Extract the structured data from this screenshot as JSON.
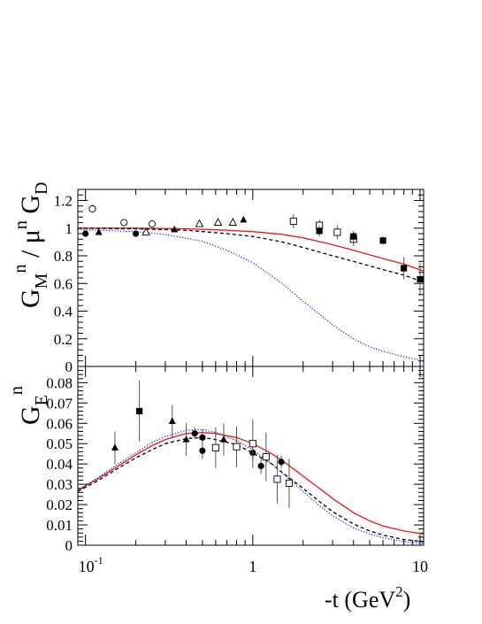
{
  "chart_data": [
    {
      "type": "scatter",
      "panel": "top",
      "ylabel": {
        "main": "G",
        "sub": "M",
        "sup1": "n",
        "mid": " / μ",
        "sup2": "n",
        "tail": " G",
        "sub2": "D"
      },
      "xscale": "log",
      "xlim": [
        0.09,
        10.5
      ],
      "ylim": [
        0,
        1.28
      ],
      "yticks": [
        "0",
        "0.2",
        "0.4",
        "0.6",
        "0.8",
        "1",
        "1.2"
      ],
      "ytick_values": [
        0,
        0.2,
        0.4,
        0.6,
        0.8,
        1.0,
        1.2
      ],
      "curves": [
        {
          "style": "solid",
          "color": "#e8171b",
          "x": [
            0.09,
            0.2,
            0.4,
            0.7,
            1.0,
            1.5,
            2.0,
            3.0,
            4.0,
            6.0,
            8.0,
            10.5
          ],
          "y": [
            1.0,
            1.0,
            0.995,
            0.985,
            0.975,
            0.955,
            0.93,
            0.88,
            0.84,
            0.78,
            0.74,
            0.69
          ]
        },
        {
          "style": "dashed",
          "color": "#000000",
          "x": [
            0.09,
            0.2,
            0.4,
            0.7,
            1.0,
            1.5,
            2.0,
            3.0,
            4.0,
            6.0,
            8.0,
            10.5
          ],
          "y": [
            1.0,
            0.995,
            0.985,
            0.96,
            0.94,
            0.9,
            0.86,
            0.8,
            0.76,
            0.7,
            0.66,
            0.61
          ]
        },
        {
          "style": "dotted",
          "color": "#1e2ad8",
          "x": [
            0.09,
            0.2,
            0.3,
            0.5,
            0.7,
            1.0,
            1.5,
            2.0,
            2.5,
            3.0,
            4.0,
            5.0,
            6.0,
            8.0,
            10.5
          ],
          "y": [
            0.99,
            0.975,
            0.955,
            0.905,
            0.84,
            0.75,
            0.6,
            0.47,
            0.38,
            0.3,
            0.2,
            0.14,
            0.11,
            0.07,
            0.04
          ]
        }
      ],
      "points": [
        {
          "marker": "open-circle",
          "x": 0.11,
          "y": 1.14,
          "err": 0.03
        },
        {
          "marker": "open-circle",
          "x": 0.17,
          "y": 1.04,
          "err": 0.02
        },
        {
          "marker": "open-circle",
          "x": 0.25,
          "y": 1.03,
          "err": 0.02
        },
        {
          "marker": "filled-circle",
          "x": 0.1,
          "y": 0.96,
          "err": 0.0
        },
        {
          "marker": "filled-circle",
          "x": 0.2,
          "y": 0.96,
          "err": 0.0
        },
        {
          "marker": "filled-triangle",
          "x": 0.12,
          "y": 0.97,
          "err": 0.0
        },
        {
          "marker": "filled-triangle",
          "x": 0.34,
          "y": 0.99,
          "err": 0.0
        },
        {
          "marker": "filled-triangle",
          "x": 0.88,
          "y": 1.06,
          "err": 0.0
        },
        {
          "marker": "open-triangle",
          "x": 0.23,
          "y": 0.97,
          "err": 0.0
        },
        {
          "marker": "open-triangle",
          "x": 0.48,
          "y": 1.03,
          "err": 0.0
        },
        {
          "marker": "open-triangle",
          "x": 0.62,
          "y": 1.04,
          "err": 0.0
        },
        {
          "marker": "open-triangle",
          "x": 0.76,
          "y": 1.04,
          "err": 0.0
        },
        {
          "marker": "open-square",
          "x": 1.75,
          "y": 1.05,
          "err": 0.05
        },
        {
          "marker": "open-square",
          "x": 2.5,
          "y": 1.02,
          "err": 0.04
        },
        {
          "marker": "open-square",
          "x": 3.2,
          "y": 0.97,
          "err": 0.05
        },
        {
          "marker": "open-square",
          "x": 4.0,
          "y": 0.92,
          "err": 0.05
        },
        {
          "marker": "filled-square",
          "x": 2.5,
          "y": 0.98,
          "err": 0.04
        },
        {
          "marker": "filled-square",
          "x": 4.0,
          "y": 0.94,
          "err": 0.04
        },
        {
          "marker": "filled-square",
          "x": 6.0,
          "y": 0.91,
          "err": 0.03
        },
        {
          "marker": "filled-square",
          "x": 8.0,
          "y": 0.71,
          "err": 0.08
        },
        {
          "marker": "filled-square",
          "x": 10.0,
          "y": 0.63,
          "err": 0.12
        }
      ]
    },
    {
      "type": "scatter",
      "panel": "bottom",
      "ylabel": {
        "main": "G",
        "sub": "E",
        "sup1": "n"
      },
      "xlabel": {
        "main": "-t (GeV",
        "sup": "2",
        "tail": ")"
      },
      "xscale": "log",
      "xlim": [
        0.09,
        10.5
      ],
      "ylim": [
        0,
        0.088
      ],
      "xtick_labels": [
        {
          "value": 0.1,
          "base": "10",
          "exp": "-1"
        },
        {
          "value": 1,
          "base": "1",
          "exp": ""
        },
        {
          "value": 10,
          "base": "10",
          "exp": ""
        }
      ],
      "yticks": [
        "0",
        "0.01",
        "0.02",
        "0.03",
        "0.04",
        "0.05",
        "0.06",
        "0.07",
        "0.08"
      ],
      "ytick_values": [
        0,
        0.01,
        0.02,
        0.03,
        0.04,
        0.05,
        0.06,
        0.07,
        0.08
      ],
      "curves": [
        {
          "style": "solid",
          "color": "#e8171b",
          "x": [
            0.09,
            0.12,
            0.15,
            0.2,
            0.25,
            0.3,
            0.4,
            0.5,
            0.6,
            0.8,
            1.0,
            1.3,
            1.6,
            2.0,
            2.5,
            3.0,
            4.0,
            5.0,
            6.0,
            8.0,
            10.5
          ],
          "y": [
            0.027,
            0.033,
            0.038,
            0.0445,
            0.049,
            0.052,
            0.055,
            0.0555,
            0.055,
            0.053,
            0.05,
            0.045,
            0.04,
            0.034,
            0.028,
            0.023,
            0.016,
            0.012,
            0.0095,
            0.007,
            0.0055
          ]
        },
        {
          "style": "dashed",
          "color": "#000000",
          "x": [
            0.09,
            0.12,
            0.15,
            0.2,
            0.25,
            0.3,
            0.4,
            0.5,
            0.6,
            0.8,
            1.0,
            1.3,
            1.6,
            2.0,
            2.5,
            3.0,
            4.0,
            5.0,
            6.0,
            8.0,
            10.5
          ],
          "y": [
            0.0265,
            0.032,
            0.037,
            0.043,
            0.047,
            0.05,
            0.0525,
            0.053,
            0.052,
            0.0495,
            0.0455,
            0.04,
            0.034,
            0.028,
            0.0215,
            0.0165,
            0.0105,
            0.007,
            0.005,
            0.0028,
            0.0018
          ]
        },
        {
          "style": "dotted",
          "color": "#1e2ad8",
          "x": [
            0.09,
            0.12,
            0.15,
            0.2,
            0.25,
            0.3,
            0.4,
            0.5,
            0.6,
            0.8,
            1.0,
            1.3,
            1.6,
            2.0,
            2.5,
            3.0,
            4.0,
            5.0,
            6.0,
            8.0,
            10.5
          ],
          "y": [
            0.027,
            0.0335,
            0.039,
            0.0455,
            0.0505,
            0.0535,
            0.0565,
            0.057,
            0.0555,
            0.0515,
            0.047,
            0.04,
            0.0335,
            0.0265,
            0.0195,
            0.0145,
            0.0085,
            0.0055,
            0.0037,
            0.0018,
            0.0009
          ]
        }
      ],
      "points": [
        {
          "marker": "filled-square",
          "x": 0.21,
          "y": 0.066,
          "err": 0.015
        },
        {
          "marker": "filled-triangle",
          "x": 0.15,
          "y": 0.048,
          "err": 0.008
        },
        {
          "marker": "filled-triangle",
          "x": 0.33,
          "y": 0.061,
          "err": 0.008
        },
        {
          "marker": "filled-triangle",
          "x": 0.4,
          "y": 0.052,
          "err": 0.008
        },
        {
          "marker": "filled-triangle",
          "x": 0.67,
          "y": 0.052,
          "err": 0.008
        },
        {
          "marker": "filled-circle",
          "x": 0.45,
          "y": 0.055,
          "err": 0.003
        },
        {
          "marker": "filled-circle",
          "x": 0.5,
          "y": 0.053,
          "err": 0.004
        },
        {
          "marker": "filled-circle",
          "x": 0.5,
          "y": 0.0465,
          "err": 0.004
        },
        {
          "marker": "filled-circle",
          "x": 1.0,
          "y": 0.0455,
          "err": 0.004
        },
        {
          "marker": "filled-circle",
          "x": 1.12,
          "y": 0.039,
          "err": 0.004
        },
        {
          "marker": "filled-circle",
          "x": 1.48,
          "y": 0.041,
          "err": 0.003
        },
        {
          "marker": "open-square",
          "x": 0.6,
          "y": 0.048,
          "err": 0.01
        },
        {
          "marker": "open-square",
          "x": 0.8,
          "y": 0.0485,
          "err": 0.01
        },
        {
          "marker": "open-square",
          "x": 1.0,
          "y": 0.05,
          "err": 0.012
        },
        {
          "marker": "open-square",
          "x": 1.2,
          "y": 0.0435,
          "err": 0.012
        },
        {
          "marker": "open-square",
          "x": 1.4,
          "y": 0.0325,
          "err": 0.012
        },
        {
          "marker": "open-square",
          "x": 1.65,
          "y": 0.0305,
          "err": 0.012
        }
      ]
    }
  ]
}
